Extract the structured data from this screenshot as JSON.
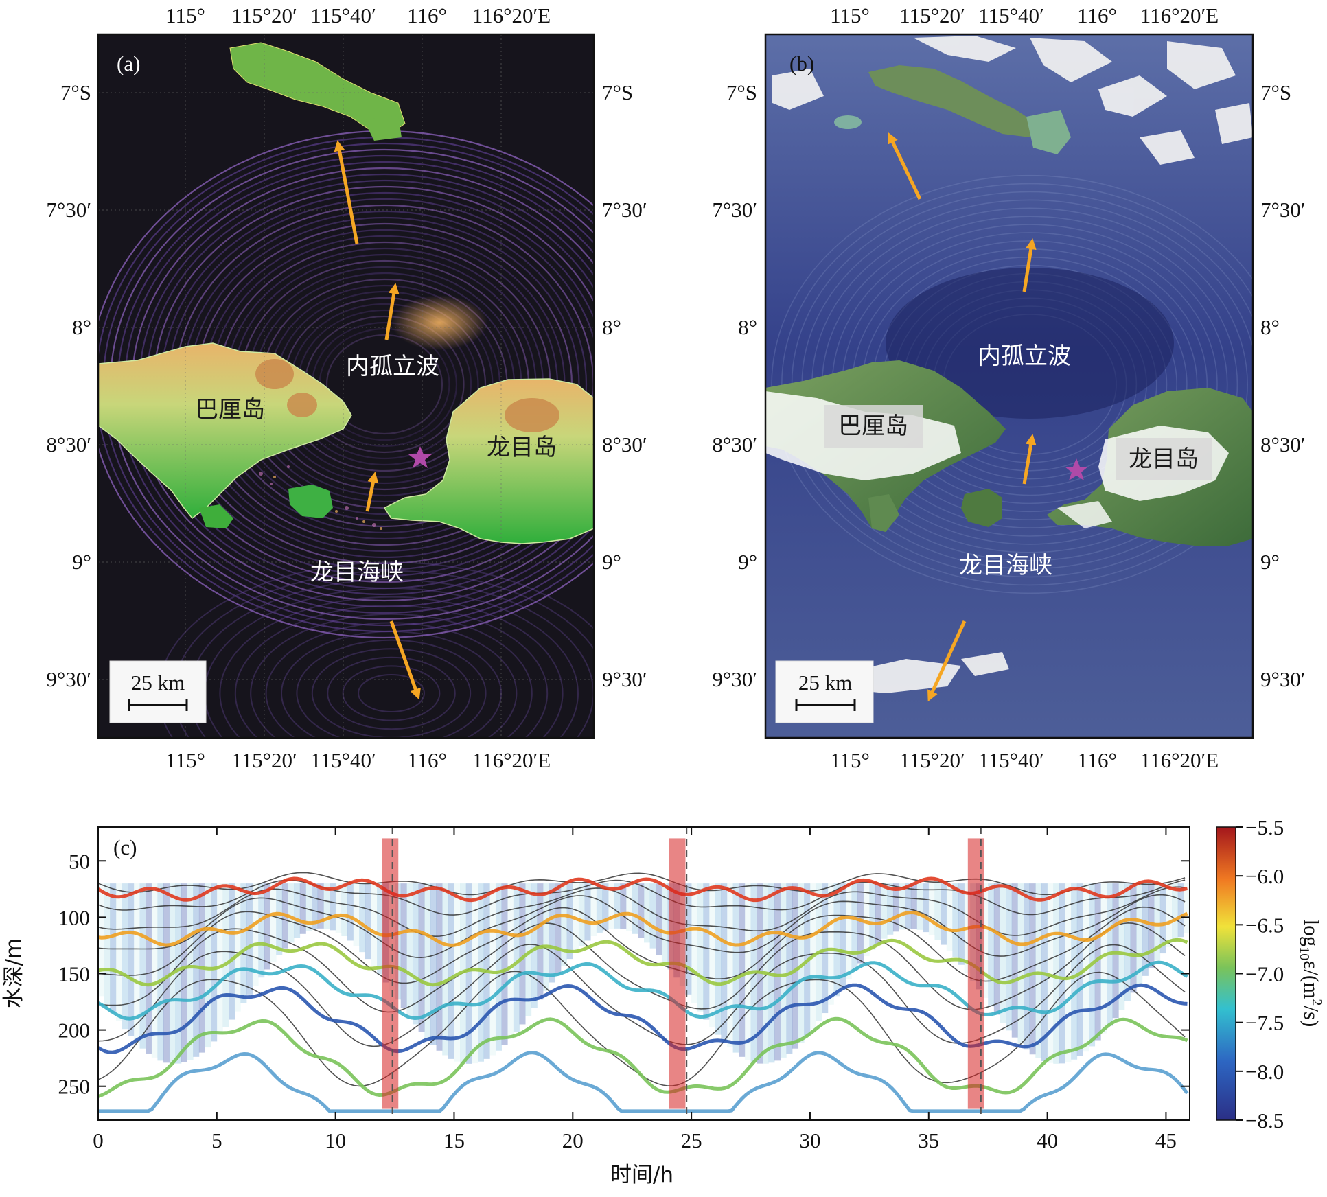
{
  "panel_a": {
    "label": "(a)",
    "top_ticks": [
      "115°",
      "115°20′",
      "115°40′",
      "116°",
      "116°20′E"
    ],
    "bottom_ticks": [
      "115°",
      "115°20′",
      "115°40′",
      "116°",
      "116°20′E"
    ],
    "left_ticks": [
      "7°S",
      "7°30′",
      "8°",
      "8°30′",
      "9°",
      "9°30′"
    ],
    "right_ticks": [
      "7°S",
      "7°30′",
      "8°",
      "8°30′",
      "9°",
      "9°30′"
    ],
    "label_wave": "内孤立波",
    "label_bali": "巴厘岛",
    "label_lombok": "龙目岛",
    "label_strait": "龙目海峡",
    "scale_text": "25 km"
  },
  "panel_b": {
    "label": "(b)",
    "top_ticks": [
      "115°",
      "115°20′",
      "115°40′",
      "116°",
      "116°20′E"
    ],
    "bottom_ticks": [
      "115°",
      "115°20′",
      "115°40′",
      "116°",
      "116°20′E"
    ],
    "left_ticks": [
      "7°S",
      "7°30′",
      "8°",
      "8°30′",
      "9°",
      "9°30′"
    ],
    "right_ticks": [
      "7°S",
      "7°30′",
      "8°",
      "8°30′",
      "9°",
      "9°30′"
    ],
    "label_wave": "内孤立波",
    "label_bali": "巴厘岛",
    "label_lombok": "龙目岛",
    "label_strait": "龙目海峡",
    "scale_text": "25 km"
  },
  "colors": {
    "arrow": "#f5a623",
    "star": "#b04aa8",
    "sea_a": "#16141c",
    "sea_b": "#3a4a80"
  },
  "chart_data": {
    "type": "heatmap",
    "panel_label": "(c)",
    "xlabel": "时间/h",
    "ylabel": "水深/m",
    "xlim": [
      0,
      46
    ],
    "ylim": [
      280,
      20
    ],
    "x_ticks": [
      0,
      5,
      10,
      15,
      20,
      25,
      30,
      35,
      40,
      45
    ],
    "y_ticks": [
      50,
      100,
      150,
      200,
      250
    ],
    "dashed_lines_x": [
      12.4,
      24.8,
      37.2
    ],
    "colorbar": {
      "label": "log10ε/(m²/s)",
      "ticks": [
        "−5.5",
        "−6.0",
        "−6.5",
        "−7.0",
        "−7.5",
        "−8.0",
        "−8.5"
      ],
      "range": [
        -8.5,
        -5.5
      ]
    },
    "isotherm_base_depths": [
      70,
      82,
      95,
      108,
      125,
      145,
      170,
      200
    ],
    "strong_mixing_events_h": [
      12.3,
      24.4,
      37.0
    ]
  }
}
